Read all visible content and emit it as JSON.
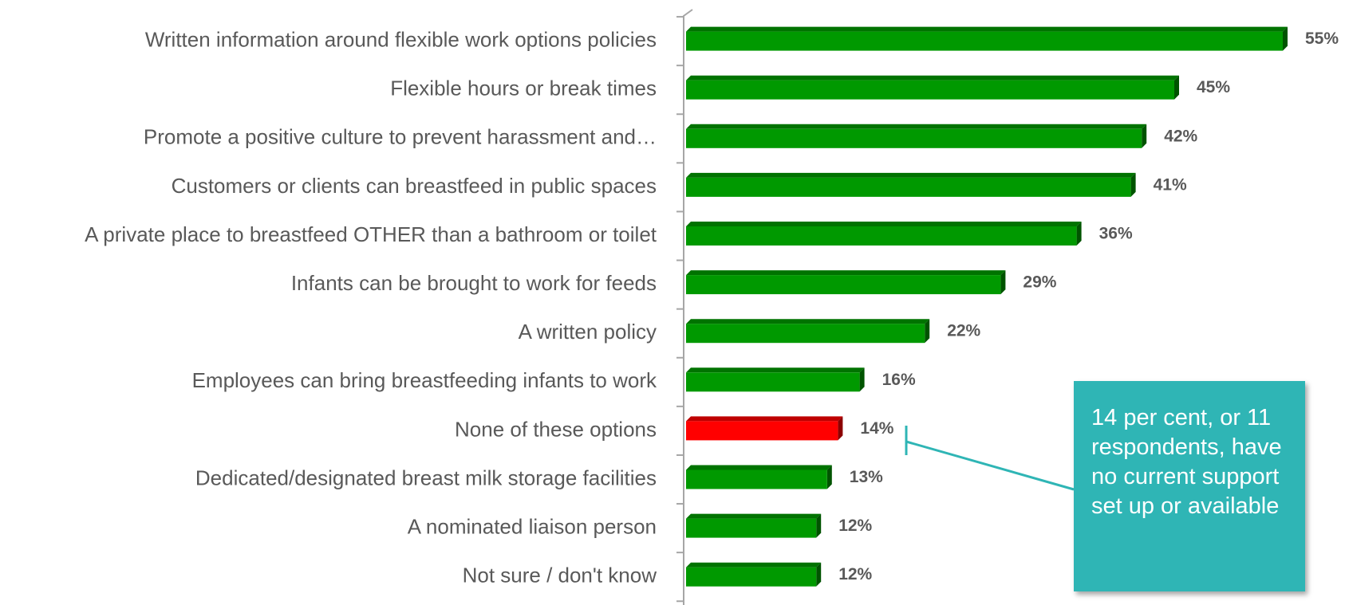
{
  "chart_data": {
    "type": "barh",
    "categories": [
      "Written information around flexible work options policies",
      "Flexible hours or break times",
      "Promote a positive culture to prevent harassment and…",
      "Customers or clients can breastfeed in public spaces",
      "A private place to breastfeed OTHER than a bathroom or toilet",
      "Infants can be brought to work for feeds",
      "A written policy",
      "Employees can bring breastfeeding infants to work",
      "None of these options",
      "Dedicated/designated breast milk storage facilities",
      "A nominated liaison person",
      "Not sure / don't know"
    ],
    "values": [
      55,
      45,
      42,
      41,
      36,
      29,
      22,
      16,
      14,
      13,
      12,
      12
    ],
    "value_labels": [
      "55%",
      "45%",
      "42%",
      "41%",
      "36%",
      "29%",
      "22%",
      "16%",
      "14%",
      "13%",
      "12%",
      "12%"
    ],
    "colors": [
      "#009900",
      "#009900",
      "#009900",
      "#009900",
      "#009900",
      "#009900",
      "#009900",
      "#009900",
      "#ff0000",
      "#009900",
      "#009900",
      "#009900"
    ],
    "annotation": "14 per cent, or 11 respondents, have no current support set up or available"
  }
}
